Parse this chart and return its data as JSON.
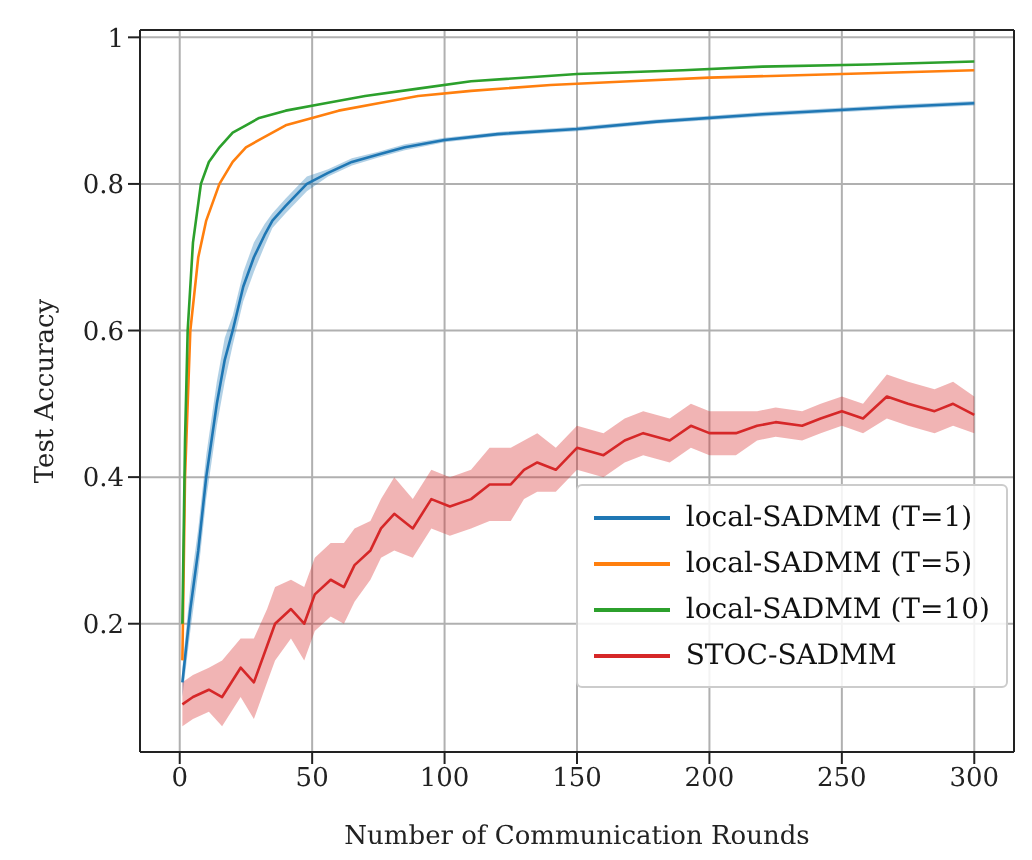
{
  "chart_data": {
    "type": "line",
    "xlabel": "Number of Communication Rounds",
    "ylabel": "Test Accuracy",
    "xlim": [
      -15,
      315
    ],
    "ylim": [
      0.025,
      1.01
    ],
    "xticks": [
      0,
      50,
      100,
      150,
      200,
      250,
      300
    ],
    "yticks": [
      0.2,
      0.4,
      0.6,
      0.8,
      1
    ],
    "grid": true,
    "legend": "bottom right",
    "line_style": "solid",
    "marker": "none",
    "series": [
      {
        "name": "local-SADMM (T=1)",
        "color": "#1f77b4",
        "x": [
          1,
          4,
          7,
          10,
          14,
          17,
          20,
          24,
          28,
          32,
          35,
          40,
          48,
          56,
          65,
          75,
          85,
          100,
          120,
          150,
          180,
          220,
          270,
          300
        ],
        "values": [
          0.12,
          0.22,
          0.3,
          0.4,
          0.5,
          0.56,
          0.6,
          0.66,
          0.7,
          0.73,
          0.75,
          0.77,
          0.8,
          0.815,
          0.83,
          0.84,
          0.85,
          0.86,
          0.868,
          0.875,
          0.885,
          0.895,
          0.905,
          0.91
        ],
        "lower": [
          0.1,
          0.19,
          0.27,
          0.37,
          0.47,
          0.53,
          0.58,
          0.64,
          0.68,
          0.715,
          0.74,
          0.76,
          0.79,
          0.81,
          0.825,
          0.836,
          0.846,
          0.857,
          0.865,
          0.872,
          0.882,
          0.892,
          0.902,
          0.907
        ],
        "upper": [
          0.14,
          0.25,
          0.33,
          0.43,
          0.53,
          0.59,
          0.62,
          0.68,
          0.72,
          0.745,
          0.76,
          0.78,
          0.81,
          0.82,
          0.835,
          0.844,
          0.854,
          0.863,
          0.871,
          0.878,
          0.888,
          0.898,
          0.908,
          0.913
        ]
      },
      {
        "name": "local-SADMM (T=5)",
        "color": "#ff7f0e",
        "x": [
          1,
          2,
          4,
          7,
          10,
          15,
          20,
          25,
          30,
          40,
          50,
          60,
          75,
          90,
          110,
          140,
          170,
          200,
          250,
          300
        ],
        "values": [
          0.15,
          0.4,
          0.6,
          0.7,
          0.75,
          0.8,
          0.83,
          0.85,
          0.86,
          0.88,
          0.89,
          0.9,
          0.91,
          0.92,
          0.927,
          0.935,
          0.94,
          0.945,
          0.95,
          0.955
        ]
      },
      {
        "name": "local-SADMM (T=10)",
        "color": "#2ca02c",
        "x": [
          1,
          2,
          3,
          5,
          8,
          11,
          15,
          20,
          25,
          30,
          40,
          55,
          70,
          90,
          110,
          150,
          190,
          220,
          260,
          300
        ],
        "values": [
          0.2,
          0.45,
          0.6,
          0.72,
          0.8,
          0.83,
          0.85,
          0.87,
          0.88,
          0.89,
          0.9,
          0.91,
          0.92,
          0.93,
          0.94,
          0.95,
          0.955,
          0.96,
          0.963,
          0.967
        ]
      },
      {
        "name": "STOC-SADMM",
        "color": "#d62728",
        "x": [
          1,
          5,
          11,
          16,
          23,
          28,
          33,
          36,
          42,
          47,
          51,
          57,
          62,
          66,
          72,
          76,
          81,
          88,
          95,
          102,
          110,
          117,
          125,
          130,
          135,
          142,
          150,
          160,
          168,
          175,
          185,
          193,
          200,
          210,
          218,
          225,
          235,
          242,
          250,
          258,
          267,
          275,
          285,
          292,
          300
        ],
        "values": [
          0.09,
          0.1,
          0.11,
          0.1,
          0.14,
          0.12,
          0.17,
          0.2,
          0.22,
          0.2,
          0.24,
          0.26,
          0.25,
          0.28,
          0.3,
          0.33,
          0.35,
          0.33,
          0.37,
          0.36,
          0.37,
          0.39,
          0.39,
          0.41,
          0.42,
          0.41,
          0.44,
          0.43,
          0.45,
          0.46,
          0.45,
          0.47,
          0.46,
          0.46,
          0.47,
          0.475,
          0.47,
          0.48,
          0.49,
          0.48,
          0.51,
          0.5,
          0.49,
          0.5,
          0.485
        ],
        "lower": [
          0.06,
          0.07,
          0.08,
          0.06,
          0.1,
          0.07,
          0.12,
          0.15,
          0.18,
          0.15,
          0.19,
          0.21,
          0.2,
          0.23,
          0.26,
          0.29,
          0.3,
          0.29,
          0.33,
          0.32,
          0.33,
          0.34,
          0.34,
          0.37,
          0.38,
          0.38,
          0.41,
          0.4,
          0.42,
          0.43,
          0.42,
          0.44,
          0.43,
          0.43,
          0.45,
          0.455,
          0.45,
          0.46,
          0.47,
          0.46,
          0.48,
          0.47,
          0.46,
          0.47,
          0.46
        ],
        "upper": [
          0.12,
          0.13,
          0.14,
          0.15,
          0.18,
          0.18,
          0.22,
          0.25,
          0.26,
          0.25,
          0.29,
          0.31,
          0.31,
          0.33,
          0.34,
          0.37,
          0.4,
          0.37,
          0.41,
          0.4,
          0.41,
          0.44,
          0.44,
          0.45,
          0.46,
          0.44,
          0.47,
          0.46,
          0.48,
          0.49,
          0.48,
          0.5,
          0.49,
          0.49,
          0.49,
          0.495,
          0.49,
          0.5,
          0.51,
          0.5,
          0.54,
          0.53,
          0.52,
          0.53,
          0.51
        ]
      }
    ]
  }
}
